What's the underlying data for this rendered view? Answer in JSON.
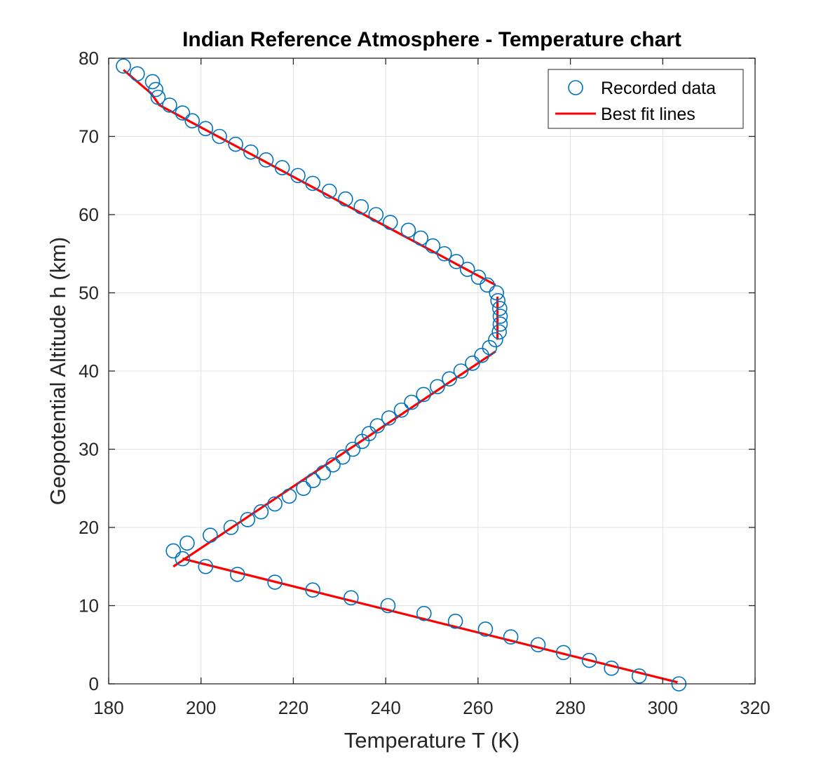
{
  "chart_data": {
    "type": "scatter",
    "title": "Indian Reference Atmosphere - Temperature chart",
    "xlabel": "Temperature T (K)",
    "ylabel": "Geopotential Altitude h (km)",
    "xlim": [
      180,
      320
    ],
    "ylim": [
      0,
      80
    ],
    "xticks": [
      180,
      200,
      220,
      240,
      260,
      280,
      300,
      320
    ],
    "yticks": [
      0,
      10,
      20,
      30,
      40,
      50,
      60,
      70,
      80
    ],
    "grid": true,
    "legend_position": "top-right",
    "colors": {
      "recorded": "#0072BD",
      "fit": "#FF0000",
      "grid": "#E1E1E1",
      "axis": "#262626"
    },
    "series": [
      {
        "name": "Recorded data",
        "kind": "markers",
        "marker": "circle",
        "points": [
          [
            303.5,
            0
          ],
          [
            294.9,
            1
          ],
          [
            288.9,
            2
          ],
          [
            284.1,
            3
          ],
          [
            278.5,
            4
          ],
          [
            273.0,
            5
          ],
          [
            267.1,
            6
          ],
          [
            261.6,
            7
          ],
          [
            255.1,
            8
          ],
          [
            248.3,
            9
          ],
          [
            240.5,
            10
          ],
          [
            232.5,
            11
          ],
          [
            224.2,
            12
          ],
          [
            216.0,
            13
          ],
          [
            207.9,
            14
          ],
          [
            201.0,
            15
          ],
          [
            196.0,
            16
          ],
          [
            194.0,
            17
          ],
          [
            197.0,
            18
          ],
          [
            202.0,
            19
          ],
          [
            206.5,
            20
          ],
          [
            210.1,
            21
          ],
          [
            213.0,
            22
          ],
          [
            216.0,
            23
          ],
          [
            219.1,
            24
          ],
          [
            222.2,
            25
          ],
          [
            224.3,
            26
          ],
          [
            226.5,
            27
          ],
          [
            228.6,
            28
          ],
          [
            230.7,
            29
          ],
          [
            232.9,
            30
          ],
          [
            234.9,
            31
          ],
          [
            236.4,
            32
          ],
          [
            238.2,
            33
          ],
          [
            240.7,
            34
          ],
          [
            243.4,
            35
          ],
          [
            245.6,
            36
          ],
          [
            248.2,
            37
          ],
          [
            251.2,
            38
          ],
          [
            253.8,
            39
          ],
          [
            256.3,
            40
          ],
          [
            258.8,
            41
          ],
          [
            260.8,
            42
          ],
          [
            262.5,
            43
          ],
          [
            263.8,
            44
          ],
          [
            264.6,
            45
          ],
          [
            264.8,
            46
          ],
          [
            264.8,
            47
          ],
          [
            264.7,
            48
          ],
          [
            264.3,
            49
          ],
          [
            264.0,
            50
          ],
          [
            262.0,
            51
          ],
          [
            260.1,
            52
          ],
          [
            257.7,
            53
          ],
          [
            255.3,
            54
          ],
          [
            252.7,
            55
          ],
          [
            250.2,
            56
          ],
          [
            247.6,
            57
          ],
          [
            244.9,
            58
          ],
          [
            241.0,
            59
          ],
          [
            237.9,
            60
          ],
          [
            234.7,
            61
          ],
          [
            231.3,
            62
          ],
          [
            227.8,
            63
          ],
          [
            224.2,
            64
          ],
          [
            221.0,
            65
          ],
          [
            217.6,
            66
          ],
          [
            214.1,
            67
          ],
          [
            210.8,
            68
          ],
          [
            207.5,
            69
          ],
          [
            204.0,
            70
          ],
          [
            201.0,
            71
          ],
          [
            198.1,
            72
          ],
          [
            196.0,
            73
          ],
          [
            193.2,
            74
          ],
          [
            190.7,
            75
          ],
          [
            190.2,
            76
          ],
          [
            189.5,
            77
          ],
          [
            186.2,
            78
          ],
          [
            183.2,
            79
          ]
        ]
      },
      {
        "name": "Best fit lines",
        "kind": "line",
        "segments": [
          [
            [
              303.2,
              0.2
            ],
            [
              196.0,
              16.0
            ]
          ],
          [
            [
              194.0,
              15.0
            ],
            [
              263.8,
              42.5
            ]
          ],
          [
            [
              264.2,
              44.0
            ],
            [
              264.2,
              49.5
            ]
          ],
          [
            [
              263.8,
              51.0
            ],
            [
              191.0,
              74.0
            ],
            [
              189.2,
              75.5
            ],
            [
              183.2,
              78.5
            ]
          ]
        ]
      }
    ]
  }
}
